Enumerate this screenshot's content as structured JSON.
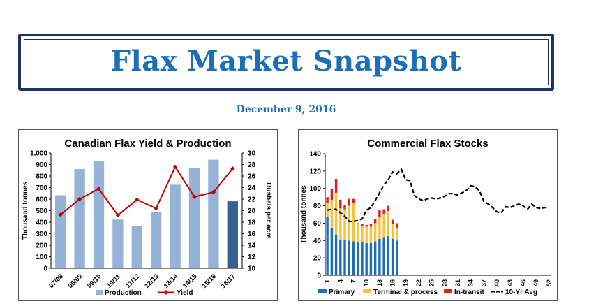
{
  "header": {
    "title": "Flax Market Snapshot",
    "date": "December 9, 2016"
  },
  "chart_data": [
    {
      "type": "bar",
      "title": "Canadian Flax Yield & Production",
      "categories": [
        "07/08",
        "08/09",
        "09/10",
        "10/11",
        "11/12",
        "12/13",
        "13/14",
        "14/15",
        "15/16",
        "16/17"
      ],
      "ylabel": "Thousand tonnes",
      "y2label": "Bushels per acre",
      "ylim": [
        0,
        1000
      ],
      "y2lim": [
        10,
        30
      ],
      "yticks": [
        "0",
        "100",
        "200",
        "300",
        "400",
        "500",
        "600",
        "700",
        "800",
        "900",
        "1,000"
      ],
      "y2ticks": [
        "10",
        "12",
        "14",
        "16",
        "18",
        "20",
        "22",
        "24",
        "26",
        "28",
        "30"
      ],
      "series": [
        {
          "name": "Production",
          "type": "bar",
          "values": [
            633,
            861,
            930,
            423,
            368,
            489,
            725,
            873,
            942,
            581
          ],
          "color": "#95b3d7",
          "highlight_color": "#366092"
        },
        {
          "name": "Yield",
          "type": "line",
          "axis": "right",
          "values": [
            19.3,
            22.0,
            23.8,
            19.2,
            21.9,
            20.4,
            27.6,
            22.4,
            23.2,
            27.3
          ],
          "color": "#c00000"
        }
      ],
      "legend": "bottom",
      "grid": false
    },
    {
      "type": "stacked-bar+line",
      "title": "Commercial Flax Stocks",
      "ylabel": "Thousand tonnes",
      "ylim": [
        0,
        140
      ],
      "yticks": [
        "0",
        "20",
        "40",
        "60",
        "80",
        "100",
        "120",
        "140"
      ],
      "xticks": [
        "1",
        "4",
        "7",
        "10",
        "13",
        "16",
        "19",
        "22",
        "25",
        "28",
        "31",
        "34",
        "37",
        "40",
        "43",
        "46",
        "49",
        "52"
      ],
      "weeks": [
        1,
        2,
        3,
        4,
        5,
        6,
        7,
        8,
        9,
        10,
        11,
        12,
        13,
        14,
        15,
        16,
        17
      ],
      "series": [
        {
          "name": "Primary",
          "values": [
            67,
            54,
            47,
            41,
            41,
            40,
            39,
            38,
            38,
            37,
            37,
            39,
            42,
            44,
            45,
            42,
            40
          ],
          "color": "#1f6db5"
        },
        {
          "name": "Terminal & process",
          "values": [
            16,
            33,
            48,
            36,
            35,
            40,
            44,
            21,
            19,
            19,
            19,
            21,
            25,
            26,
            29,
            17,
            14
          ],
          "color": "#f5c342"
        },
        {
          "name": "In-transit",
          "values": [
            7,
            12,
            16,
            10,
            5,
            8,
            5,
            1,
            2,
            2,
            3,
            5,
            8,
            6,
            6,
            5,
            6
          ],
          "color": "#e02020"
        },
        {
          "name": "10-Yr Avg",
          "type": "line",
          "dash": true,
          "x": [
            1,
            2,
            3,
            4,
            5,
            6,
            7,
            8,
            9,
            10,
            11,
            12,
            13,
            14,
            15,
            16,
            17,
            18,
            19,
            20,
            21,
            22,
            23,
            24,
            25,
            26,
            27,
            28,
            29,
            30,
            31,
            32,
            33,
            34,
            35,
            36,
            37,
            38,
            39,
            40,
            41,
            42,
            43,
            44,
            45,
            46,
            47,
            48,
            49,
            50,
            51,
            52
          ],
          "values": [
            75,
            76,
            76,
            72,
            68,
            62,
            62,
            63,
            65,
            75,
            78,
            86,
            95,
            104,
            110,
            119,
            117,
            122,
            110,
            109,
            92,
            88,
            86,
            88,
            89,
            88,
            89,
            91,
            94,
            94,
            92,
            95,
            98,
            103,
            102,
            97,
            85,
            82,
            78,
            73,
            72,
            79,
            78,
            80,
            82,
            80,
            76,
            82,
            78,
            77,
            78,
            77
          ],
          "color": "#000000"
        }
      ],
      "legend": "bottom",
      "grid": false
    }
  ]
}
